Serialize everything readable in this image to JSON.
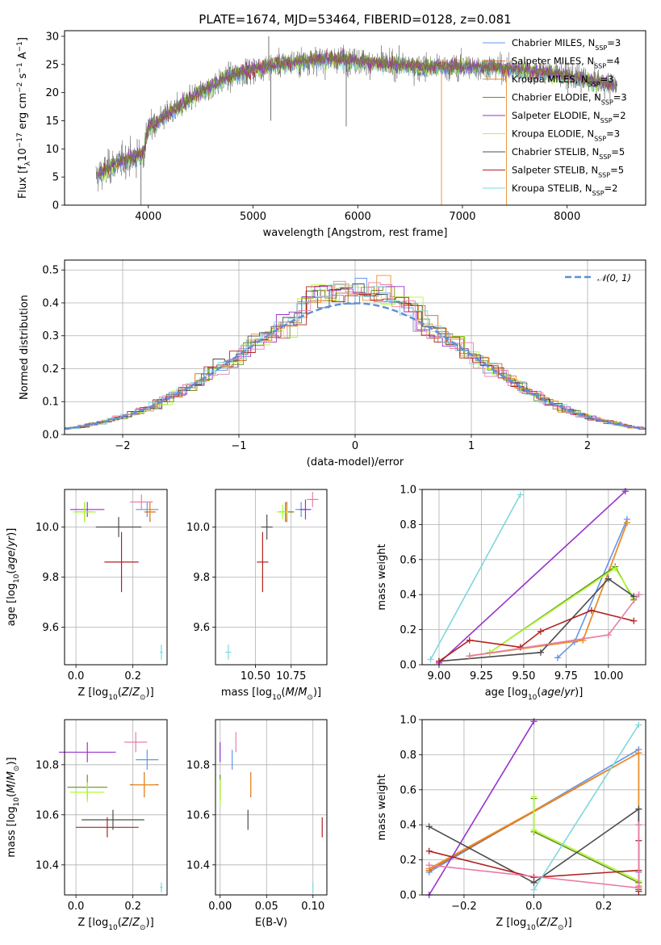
{
  "colors": {
    "chabrier_miles": "#6495ED",
    "salpeter_miles": "#D2691E",
    "kroupa_miles": "#E8902A",
    "chabrier_elodie": "#6B8E23",
    "salpeter_elodie": "#9932CC",
    "kroupa_elodie": "#ADFF2F",
    "chabrier_stelib": "#4D4D4D",
    "salpeter_stelib": "#B22222",
    "kroupa_stelib": "#7FD7DD",
    "pink": "#E87DA8",
    "spectrum_grey": "#666666",
    "normal_line": "#5B8FD8"
  },
  "chart_data": [
    {
      "type": "line",
      "title": "PLATE=1674, MJD=53464, FIBERID=0128, z=0.081",
      "xlabel": "wavelength [Angstrom, rest frame]",
      "ylabel": "Flux [f_λ 10^-17 erg cm^-2 s^-1 A^-1]",
      "xlim": [
        3200,
        8750
      ],
      "ylim": [
        0,
        31
      ],
      "xticks": [
        "4000",
        "5000",
        "6000",
        "7000",
        "8000"
      ],
      "yticks": [
        "0",
        "5",
        "10",
        "15",
        "20",
        "25",
        "30"
      ],
      "grid": false,
      "legend_position": "top-right",
      "legend": [
        {
          "pre": "Chabrier MILES, N",
          "sub": "SSP",
          "post": "=3"
        },
        {
          "pre": "Salpeter MILES, N",
          "sub": "SSP",
          "post": "=4"
        },
        {
          "pre": "Kroupa MILES, N",
          "sub": "SSP",
          "post": "=3"
        },
        {
          "pre": "Chabrier ELODIE, N",
          "sub": "SSP",
          "post": "=3"
        },
        {
          "pre": "Salpeter ELODIE, N",
          "sub": "SSP",
          "post": "=2"
        },
        {
          "pre": "Kroupa ELODIE, N",
          "sub": "SSP",
          "post": "=3"
        },
        {
          "pre": "Chabrier STELIB, N",
          "sub": "SSP",
          "post": "=5"
        },
        {
          "pre": "Salpeter STELIB, N",
          "sub": "SSP",
          "post": "=5"
        },
        {
          "pre": "Kroupa STELIB, N",
          "sub": "SSP",
          "post": "=2"
        }
      ],
      "continuum": {
        "x": [
          3500,
          3700,
          3950,
          4000,
          4100,
          4300,
          4500,
          4800,
          5000,
          5200,
          5500,
          5800,
          6000,
          6300,
          6600,
          7000,
          7300,
          7500,
          7800,
          8100,
          8500
        ],
        "y": [
          5,
          7.5,
          9,
          13.5,
          15,
          17.5,
          20,
          23,
          24,
          25,
          25.5,
          26,
          25.5,
          25,
          24.5,
          24.5,
          24.5,
          24,
          23.5,
          22.5,
          21
        ]
      }
    },
    {
      "type": "line",
      "xlabel": "(data-model)/error",
      "ylabel": "Normed distribution",
      "xlim": [
        -2.5,
        2.5
      ],
      "ylim": [
        0,
        0.53
      ],
      "xticks": [
        "−2",
        "−1",
        "0",
        "1",
        "2"
      ],
      "yticks": [
        "0.0",
        "0.1",
        "0.2",
        "0.3",
        "0.4",
        "0.5"
      ],
      "grid": true,
      "legend_position": "top-right",
      "legend": [
        "𝒩(0, 1)"
      ]
    },
    {
      "type": "scatter",
      "xlabel": "Z [log10(Z/Z⊙)]",
      "ylabel": "age [log10(age/yr)]",
      "xlim": [
        -0.04,
        0.32
      ],
      "ylim": [
        9.45,
        10.15
      ],
      "xticks": [
        "0.0",
        "0.2"
      ],
      "yticks": [
        "9.6",
        "9.8",
        "10.0"
      ],
      "points": [
        {
          "c": "chabrier_miles",
          "x": 0.25,
          "y": 10.07,
          "xe": 0.04,
          "ye": 0.03
        },
        {
          "c": "salpeter_miles",
          "x": 0.26,
          "y": 10.06,
          "xe": 0.02,
          "ye": 0.04
        },
        {
          "c": "kroupa_miles",
          "x": 0.26,
          "y": 10.07,
          "xe": 0.02,
          "ye": 0.03
        },
        {
          "c": "chabrier_elodie",
          "x": 0.03,
          "y": 10.06,
          "xe": 0.03,
          "ye": 0.04
        },
        {
          "c": "salpeter_elodie",
          "x": 0.04,
          "y": 10.07,
          "xe": 0.06,
          "ye": 0.03
        },
        {
          "c": "kroupa_elodie",
          "x": 0.03,
          "y": 10.06,
          "xe": 0.04,
          "ye": 0.04
        },
        {
          "c": "chabrier_stelib",
          "x": 0.15,
          "y": 10.0,
          "xe": 0.08,
          "ye": 0.04
        },
        {
          "c": "salpeter_stelib",
          "x": 0.16,
          "y": 9.86,
          "xe": 0.06,
          "ye": 0.12
        },
        {
          "c": "kroupa_stelib",
          "x": 0.3,
          "y": 9.5,
          "xe": 0.005,
          "ye": 0.03
        },
        {
          "c": "pink",
          "x": 0.23,
          "y": 10.1,
          "xe": 0.04,
          "ye": 0.03
        }
      ]
    },
    {
      "type": "scatter",
      "xlabel": "mass [log10(M/M⊙)]",
      "ylabel": "",
      "xlim": [
        10.22,
        11.0
      ],
      "ylim": [
        9.45,
        10.15
      ],
      "xticks": [
        "10.50",
        "10.75"
      ],
      "yticks": [
        "9.6",
        "9.8",
        "10.0"
      ],
      "points": [
        {
          "c": "chabrier_miles",
          "x": 10.82,
          "y": 10.07,
          "xe": 0.04,
          "ye": 0.03
        },
        {
          "c": "salpeter_miles",
          "x": 10.72,
          "y": 10.06,
          "xe": 0.05,
          "ye": 0.04
        },
        {
          "c": "kroupa_miles",
          "x": 10.72,
          "y": 10.06,
          "xe": 0.04,
          "ye": 0.03
        },
        {
          "c": "chabrier_elodie",
          "x": 10.71,
          "y": 10.06,
          "xe": 0.05,
          "ye": 0.04
        },
        {
          "c": "salpeter_elodie",
          "x": 10.85,
          "y": 10.07,
          "xe": 0.04,
          "ye": 0.04
        },
        {
          "c": "kroupa_elodie",
          "x": 10.69,
          "y": 10.06,
          "xe": 0.04,
          "ye": 0.03
        },
        {
          "c": "chabrier_stelib",
          "x": 10.58,
          "y": 10.0,
          "xe": 0.04,
          "ye": 0.05
        },
        {
          "c": "salpeter_stelib",
          "x": 10.55,
          "y": 9.86,
          "xe": 0.04,
          "ye": 0.12
        },
        {
          "c": "kroupa_stelib",
          "x": 10.31,
          "y": 9.5,
          "xe": 0.02,
          "ye": 0.03
        },
        {
          "c": "pink",
          "x": 10.9,
          "y": 10.11,
          "xe": 0.04,
          "ye": 0.03
        }
      ]
    },
    {
      "type": "line",
      "xlabel": "age [log10(age/yr)]",
      "ylabel": "mass weight",
      "xlim": [
        8.9,
        10.22
      ],
      "ylim": [
        0,
        1.0
      ],
      "xticks": [
        "9.00",
        "9.25",
        "9.50",
        "9.75",
        "10.00"
      ],
      "yticks": [
        "0.0",
        "0.2",
        "0.4",
        "0.6",
        "0.8",
        "1.0"
      ],
      "series": [
        {
          "c": "chabrier_miles",
          "x": [
            9.7,
            9.8,
            10.11
          ],
          "y": [
            0.04,
            0.13,
            0.83
          ]
        },
        {
          "c": "salpeter_miles",
          "x": [
            9.18,
            9.85,
            10.11
          ],
          "y": [
            0.05,
            0.14,
            0.81
          ]
        },
        {
          "c": "kroupa_miles",
          "x": [
            9.18,
            9.85,
            10.11
          ],
          "y": [
            0.05,
            0.14,
            0.81
          ]
        },
        {
          "c": "chabrier_elodie",
          "x": [
            9.3,
            10.04,
            10.15
          ],
          "y": [
            0.07,
            0.56,
            0.37
          ]
        },
        {
          "c": "salpeter_elodie",
          "x": [
            9.0,
            10.1
          ],
          "y": [
            0.01,
            0.99
          ]
        },
        {
          "c": "kroupa_elodie",
          "x": [
            9.3,
            10.04,
            10.15
          ],
          "y": [
            0.07,
            0.55,
            0.38
          ]
        },
        {
          "c": "chabrier_stelib",
          "x": [
            9.0,
            9.6,
            10.0,
            10.15
          ],
          "y": [
            0.02,
            0.07,
            0.49,
            0.39
          ]
        },
        {
          "c": "salpeter_stelib",
          "x": [
            9.0,
            9.18,
            9.48,
            9.6,
            9.9,
            10.15
          ],
          "y": [
            0.02,
            0.14,
            0.1,
            0.19,
            0.31,
            0.25
          ]
        },
        {
          "c": "kroupa_stelib",
          "x": [
            8.95,
            9.48
          ],
          "y": [
            0.03,
            0.97
          ]
        },
        {
          "c": "pink",
          "x": [
            9.18,
            10.0,
            10.18
          ],
          "y": [
            0.05,
            0.17,
            0.4
          ]
        }
      ]
    },
    {
      "type": "scatter",
      "xlabel": "Z [log10(Z/Z⊙)]",
      "ylabel": "mass [log10(M/M⊙)]",
      "xlim": [
        -0.04,
        0.32
      ],
      "ylim": [
        10.28,
        10.98
      ],
      "xticks": [
        "0.0",
        "0.2"
      ],
      "yticks": [
        "10.4",
        "10.6",
        "10.8"
      ],
      "points": [
        {
          "c": "chabrier_miles",
          "x": 0.25,
          "y": 10.82,
          "xe": 0.04,
          "ye": 0.04
        },
        {
          "c": "salpeter_miles",
          "x": 0.24,
          "y": 10.72,
          "xe": 0.05,
          "ye": 0.05
        },
        {
          "c": "kroupa_miles",
          "x": 0.24,
          "y": 10.72,
          "xe": 0.04,
          "ye": 0.04
        },
        {
          "c": "chabrier_elodie",
          "x": 0.04,
          "y": 10.71,
          "xe": 0.07,
          "ye": 0.05
        },
        {
          "c": "salpeter_elodie",
          "x": 0.04,
          "y": 10.85,
          "xe": 0.1,
          "ye": 0.04
        },
        {
          "c": "kroupa_elodie",
          "x": 0.04,
          "y": 10.69,
          "xe": 0.06,
          "ye": 0.04
        },
        {
          "c": "chabrier_stelib",
          "x": 0.13,
          "y": 10.58,
          "xe": 0.11,
          "ye": 0.04
        },
        {
          "c": "salpeter_stelib",
          "x": 0.11,
          "y": 10.55,
          "xe": 0.11,
          "ye": 0.04
        },
        {
          "c": "kroupa_stelib",
          "x": 0.3,
          "y": 10.31,
          "xe": 0.005,
          "ye": 0.02
        },
        {
          "c": "pink",
          "x": 0.21,
          "y": 10.89,
          "xe": 0.04,
          "ye": 0.04
        }
      ]
    },
    {
      "type": "scatter",
      "xlabel": "E(B-V)",
      "ylabel": "",
      "xlim": [
        -0.005,
        0.115
      ],
      "ylim": [
        10.28,
        10.98
      ],
      "xticks": [
        "0.00",
        "0.05",
        "0.10"
      ],
      "yticks": [
        "10.4",
        "10.6",
        "10.8"
      ],
      "points": [
        {
          "c": "chabrier_miles",
          "x": 0.013,
          "y": 10.82,
          "xe": 0,
          "ye": 0.04
        },
        {
          "c": "salpeter_miles",
          "x": 0.033,
          "y": 10.72,
          "xe": 0,
          "ye": 0.05
        },
        {
          "c": "kroupa_miles",
          "x": 0.033,
          "y": 10.72,
          "xe": 0,
          "ye": 0.04
        },
        {
          "c": "chabrier_elodie",
          "x": 0.0,
          "y": 10.71,
          "xe": 0,
          "ye": 0.05
        },
        {
          "c": "salpeter_elodie",
          "x": 0.0,
          "y": 10.85,
          "xe": 0,
          "ye": 0.04
        },
        {
          "c": "kroupa_elodie",
          "x": 0.0,
          "y": 10.69,
          "xe": 0,
          "ye": 0.05
        },
        {
          "c": "chabrier_stelib",
          "x": 0.03,
          "y": 10.58,
          "xe": 0,
          "ye": 0.04
        },
        {
          "c": "salpeter_stelib",
          "x": 0.11,
          "y": 10.55,
          "xe": 0,
          "ye": 0.04
        },
        {
          "c": "kroupa_stelib",
          "x": 0.1,
          "y": 10.31,
          "xe": 0,
          "ye": 0.02
        },
        {
          "c": "pink",
          "x": 0.017,
          "y": 10.89,
          "xe": 0,
          "ye": 0.04
        }
      ]
    },
    {
      "type": "line",
      "xlabel": "Z [log10(Z/Z⊙)]",
      "ylabel": "mass weight",
      "xlim": [
        -0.32,
        0.32
      ],
      "ylim": [
        0,
        1.0
      ],
      "xticks": [
        "−0.2",
        "0.0",
        "0.2"
      ],
      "yticks": [
        "0.0",
        "0.2",
        "0.4",
        "0.6",
        "0.8",
        "1.0"
      ],
      "series": [
        {
          "c": "chabrier_miles",
          "x": [
            -0.3,
            0.3,
            0.3,
            0.3
          ],
          "y": [
            0.13,
            0.83,
            0.04,
            0.13
          ]
        },
        {
          "c": "salpeter_miles",
          "x": [
            -0.3,
            0.3,
            0.3
          ],
          "y": [
            0.14,
            0.81,
            0.05
          ]
        },
        {
          "c": "kroupa_miles",
          "x": [
            -0.3,
            0.3,
            0.3
          ],
          "y": [
            0.15,
            0.81,
            0.05
          ]
        },
        {
          "c": "chabrier_elodie",
          "x": [
            0.0,
            0.0,
            0.3
          ],
          "y": [
            0.55,
            0.36,
            0.07
          ]
        },
        {
          "c": "salpeter_elodie",
          "x": [
            -0.3,
            0.0
          ],
          "y": [
            0.0,
            0.99
          ]
        },
        {
          "c": "kroupa_elodie",
          "x": [
            0.0,
            0.0,
            0.3
          ],
          "y": [
            0.56,
            0.37,
            0.08
          ]
        },
        {
          "c": "chabrier_stelib",
          "x": [
            -0.3,
            0.0,
            0.3,
            0.3
          ],
          "y": [
            0.39,
            0.07,
            0.49,
            0.03
          ]
        },
        {
          "c": "salpeter_stelib",
          "x": [
            -0.3,
            0.0,
            0.3,
            0.3,
            0.3
          ],
          "y": [
            0.25,
            0.1,
            0.14,
            0.31,
            0.02
          ]
        },
        {
          "c": "kroupa_stelib",
          "x": [
            0.0,
            0.3
          ],
          "y": [
            0.03,
            0.97
          ]
        },
        {
          "c": "pink",
          "x": [
            -0.3,
            0.3,
            0.3
          ],
          "y": [
            0.17,
            0.04,
            0.4
          ]
        }
      ]
    }
  ]
}
